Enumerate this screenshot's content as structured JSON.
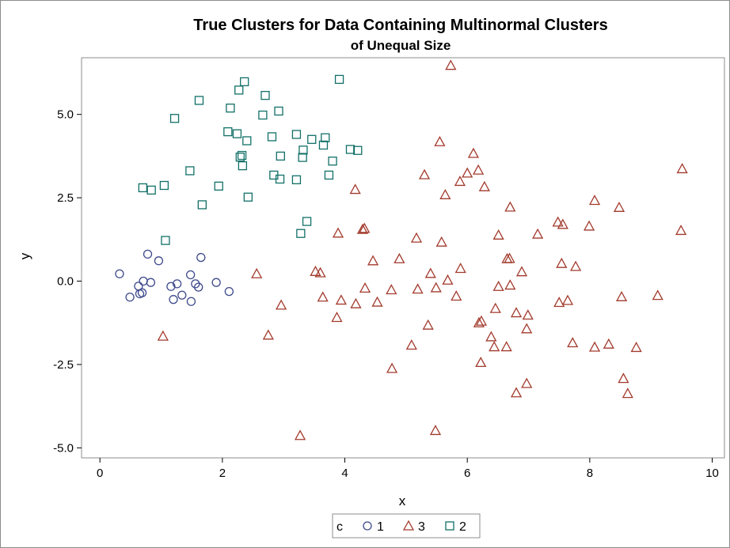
{
  "chart_data": {
    "type": "scatter",
    "title": "True Clusters for Data Containing Multinormal Clusters",
    "subtitle": "of Unequal Size",
    "xlabel": "x",
    "ylabel": "y",
    "xlim": [
      -0.3,
      10.2
    ],
    "ylim": [
      -5.3,
      6.7
    ],
    "xticks": [
      0,
      2,
      4,
      6,
      8,
      10
    ],
    "xtick_labels": [
      "0",
      "2",
      "4",
      "6",
      "8",
      "10"
    ],
    "yticks": [
      -5,
      -2.5,
      0,
      2.5,
      5
    ],
    "ytick_labels": [
      "-5.0",
      "-2.5",
      "0.0",
      "2.5",
      "5.0"
    ],
    "grid": false,
    "legend": {
      "title": "c",
      "placement": "bottom-center"
    },
    "series": [
      {
        "name": "1",
        "marker": "circle",
        "color": "#3e4a8c",
        "points": [
          [
            0.32,
            0.22
          ],
          [
            0.49,
            -0.48
          ],
          [
            0.63,
            -0.15
          ],
          [
            0.65,
            -0.38
          ],
          [
            0.69,
            -0.35
          ],
          [
            0.71,
            0.0
          ],
          [
            0.78,
            0.81
          ],
          [
            0.83,
            -0.04
          ],
          [
            0.96,
            0.61
          ],
          [
            1.16,
            -0.16
          ],
          [
            1.2,
            -0.55
          ],
          [
            1.26,
            -0.08
          ],
          [
            1.34,
            -0.42
          ],
          [
            1.48,
            0.19
          ],
          [
            1.49,
            -0.61
          ],
          [
            1.56,
            -0.08
          ],
          [
            1.61,
            -0.18
          ],
          [
            1.65,
            0.71
          ],
          [
            1.9,
            -0.04
          ],
          [
            2.11,
            -0.31
          ]
        ]
      },
      {
        "name": "3",
        "marker": "triangle",
        "color": "#a23a2c",
        "points": [
          [
            1.03,
            -1.65
          ],
          [
            2.56,
            0.22
          ],
          [
            2.75,
            -1.62
          ],
          [
            2.96,
            -0.72
          ],
          [
            3.27,
            -4.63
          ],
          [
            3.52,
            0.29
          ],
          [
            3.6,
            0.25
          ],
          [
            3.64,
            -0.48
          ],
          [
            3.87,
            -1.09
          ],
          [
            3.89,
            1.44
          ],
          [
            3.94,
            -0.57
          ],
          [
            4.17,
            2.75
          ],
          [
            4.18,
            -0.68
          ],
          [
            4.29,
            1.55
          ],
          [
            4.32,
            1.58
          ],
          [
            4.33,
            -0.21
          ],
          [
            4.46,
            0.61
          ],
          [
            4.53,
            -0.63
          ],
          [
            4.76,
            -0.26
          ],
          [
            4.77,
            -2.62
          ],
          [
            4.89,
            0.67
          ],
          [
            5.09,
            -1.92
          ],
          [
            5.17,
            1.29
          ],
          [
            5.19,
            -0.24
          ],
          [
            5.3,
            3.19
          ],
          [
            5.36,
            -1.32
          ],
          [
            5.4,
            0.23
          ],
          [
            5.48,
            -4.48
          ],
          [
            5.49,
            -0.2
          ],
          [
            5.55,
            4.18
          ],
          [
            5.58,
            1.17
          ],
          [
            5.64,
            2.59
          ],
          [
            5.68,
            0.03
          ],
          [
            5.73,
            6.47
          ],
          [
            5.82,
            -0.45
          ],
          [
            5.88,
            2.99
          ],
          [
            5.89,
            0.38
          ],
          [
            6.0,
            3.24
          ],
          [
            6.1,
            3.83
          ],
          [
            6.18,
            3.33
          ],
          [
            6.19,
            -1.25
          ],
          [
            6.22,
            -2.44
          ],
          [
            6.23,
            -1.2
          ],
          [
            6.28,
            2.83
          ],
          [
            6.39,
            -1.67
          ],
          [
            6.44,
            -1.97
          ],
          [
            6.46,
            -0.82
          ],
          [
            6.51,
            -0.16
          ],
          [
            6.51,
            1.38
          ],
          [
            6.64,
            -1.97
          ],
          [
            6.65,
            0.67
          ],
          [
            6.69,
            0.68
          ],
          [
            6.7,
            2.22
          ],
          [
            6.7,
            -0.12
          ],
          [
            6.8,
            -3.35
          ],
          [
            6.8,
            -0.95
          ],
          [
            6.89,
            0.28
          ],
          [
            6.97,
            -1.43
          ],
          [
            6.97,
            -3.07
          ],
          [
            6.99,
            -1.02
          ],
          [
            7.15,
            1.41
          ],
          [
            7.48,
            1.77
          ],
          [
            7.5,
            -0.64
          ],
          [
            7.54,
            0.53
          ],
          [
            7.56,
            1.7
          ],
          [
            7.64,
            -0.58
          ],
          [
            7.72,
            -1.85
          ],
          [
            7.77,
            0.44
          ],
          [
            7.99,
            1.65
          ],
          [
            8.08,
            2.42
          ],
          [
            8.08,
            -1.98
          ],
          [
            8.31,
            -1.89
          ],
          [
            8.48,
            2.21
          ],
          [
            8.52,
            -0.47
          ],
          [
            8.55,
            -2.92
          ],
          [
            8.62,
            -3.37
          ],
          [
            8.76,
            -1.99
          ],
          [
            9.11,
            -0.43
          ],
          [
            9.49,
            1.52
          ],
          [
            9.51,
            3.37
          ]
        ]
      },
      {
        "name": "2",
        "marker": "square",
        "color": "#117067",
        "points": [
          [
            0.7,
            2.8
          ],
          [
            0.84,
            2.73
          ],
          [
            1.05,
            2.87
          ],
          [
            1.07,
            1.22
          ],
          [
            1.22,
            4.88
          ],
          [
            1.47,
            3.31
          ],
          [
            1.62,
            5.42
          ],
          [
            1.67,
            2.29
          ],
          [
            1.94,
            2.85
          ],
          [
            2.09,
            4.48
          ],
          [
            2.13,
            5.19
          ],
          [
            2.24,
            4.42
          ],
          [
            2.27,
            5.73
          ],
          [
            2.29,
            3.72
          ],
          [
            2.32,
            3.77
          ],
          [
            2.33,
            3.46
          ],
          [
            2.36,
            5.98
          ],
          [
            2.4,
            4.21
          ],
          [
            2.42,
            2.52
          ],
          [
            2.66,
            4.98
          ],
          [
            2.7,
            5.57
          ],
          [
            2.81,
            4.33
          ],
          [
            2.84,
            3.18
          ],
          [
            2.92,
            5.1
          ],
          [
            2.94,
            3.06
          ],
          [
            2.95,
            3.75
          ],
          [
            3.21,
            4.4
          ],
          [
            3.21,
            3.04
          ],
          [
            3.28,
            1.43
          ],
          [
            3.31,
            3.71
          ],
          [
            3.32,
            3.93
          ],
          [
            3.38,
            1.79
          ],
          [
            3.46,
            4.25
          ],
          [
            3.65,
            4.08
          ],
          [
            3.68,
            4.3
          ],
          [
            3.74,
            3.18
          ],
          [
            3.8,
            3.6
          ],
          [
            3.91,
            6.05
          ],
          [
            4.09,
            3.95
          ],
          [
            4.21,
            3.92
          ]
        ]
      }
    ]
  }
}
